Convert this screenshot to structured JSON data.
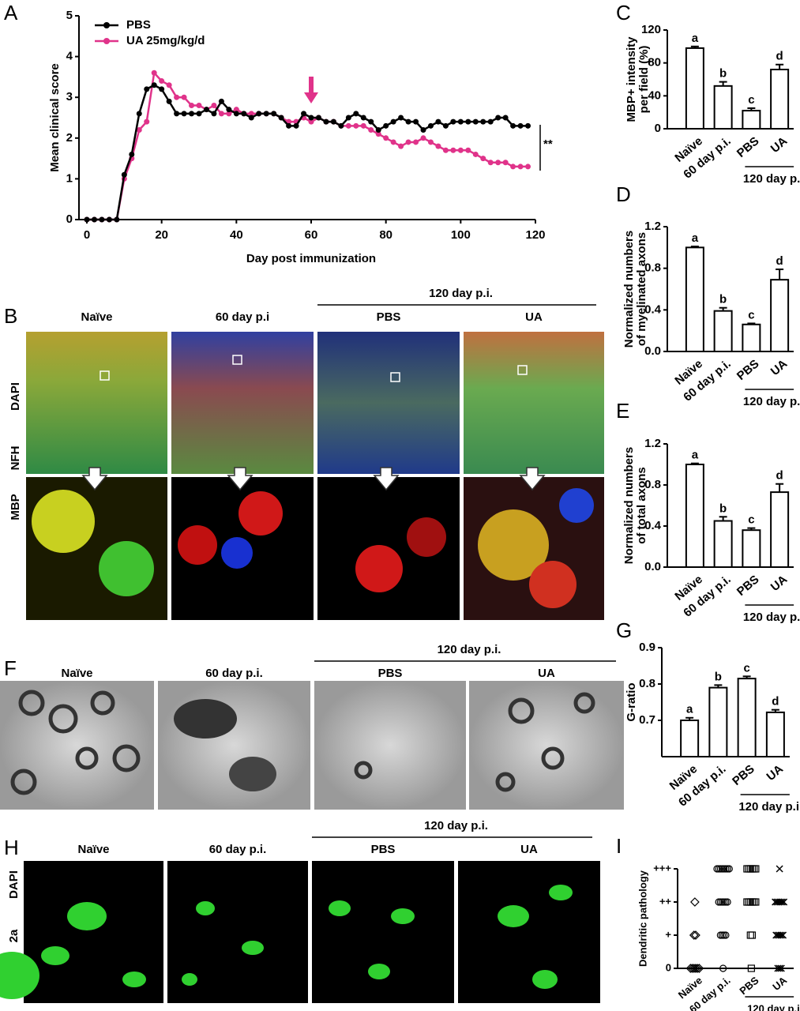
{
  "chart_data": [
    {
      "type": "line",
      "panel": "A",
      "xlabel": "Day post immunization",
      "ylabel": "Mean clinical score",
      "x": [
        0,
        2,
        4,
        6,
        8,
        10,
        12,
        14,
        16,
        18,
        20,
        22,
        24,
        26,
        28,
        30,
        32,
        34,
        36,
        38,
        40,
        42,
        44,
        46,
        48,
        50,
        52,
        54,
        56,
        58,
        60,
        62,
        64,
        66,
        68,
        70,
        72,
        74,
        76,
        78,
        80,
        82,
        84,
        86,
        88,
        90,
        92,
        94,
        96,
        98,
        100,
        102,
        104,
        106,
        108,
        110,
        112,
        114,
        116,
        118
      ],
      "series": [
        {
          "name": "PBS",
          "color": "#000000",
          "values": [
            0,
            0,
            0,
            0,
            0,
            1.1,
            1.6,
            2.6,
            3.2,
            3.3,
            3.2,
            2.9,
            2.6,
            2.6,
            2.6,
            2.6,
            2.7,
            2.6,
            2.9,
            2.7,
            2.6,
            2.6,
            2.5,
            2.6,
            2.6,
            2.6,
            2.5,
            2.3,
            2.3,
            2.6,
            2.5,
            2.5,
            2.4,
            2.4,
            2.3,
            2.5,
            2.6,
            2.5,
            2.4,
            2.2,
            2.3,
            2.4,
            2.5,
            2.4,
            2.4,
            2.2,
            2.3,
            2.4,
            2.3,
            2.4,
            2.4,
            2.4,
            2.4,
            2.4,
            2.4,
            2.5,
            2.5,
            2.3,
            2.3,
            2.3
          ]
        },
        {
          "name": "UA 25mg/kg/d",
          "color": "#e0338a",
          "values": [
            0,
            0,
            0,
            0,
            0,
            1.0,
            1.5,
            2.2,
            2.4,
            3.6,
            3.4,
            3.3,
            3.0,
            3.0,
            2.8,
            2.8,
            2.7,
            2.8,
            2.6,
            2.6,
            2.7,
            2.6,
            2.6,
            2.6,
            2.6,
            2.6,
            2.5,
            2.4,
            2.4,
            2.5,
            2.4,
            2.5,
            2.4,
            2.4,
            2.3,
            2.3,
            2.3,
            2.3,
            2.2,
            2.1,
            2.0,
            1.9,
            1.8,
            1.9,
            1.9,
            2.0,
            1.9,
            1.8,
            1.7,
            1.7,
            1.7,
            1.7,
            1.6,
            1.5,
            1.4,
            1.4,
            1.4,
            1.3,
            1.3,
            1.3
          ]
        }
      ],
      "xlim": [
        0,
        120
      ],
      "xticks": [
        0,
        20,
        40,
        60,
        80,
        100,
        120
      ],
      "ylim": [
        0,
        5
      ],
      "yticks": [
        0,
        1,
        2,
        3,
        4,
        5
      ],
      "legend": "upper left",
      "annotation": "**"
    },
    {
      "type": "bar",
      "panel": "C",
      "ylabel": [
        "MBP+ intensity",
        "per field (%)"
      ],
      "categories": [
        "Naïve",
        "60 day p.i.",
        "PBS",
        "UA"
      ],
      "group_label": "120 day p.i.",
      "values": [
        98,
        52,
        22,
        72
      ],
      "errors": [
        2,
        5,
        3,
        6
      ],
      "letters": [
        "a",
        "b",
        "c",
        "d"
      ],
      "ylim": [
        0,
        120
      ],
      "yticks": [
        0,
        40,
        80,
        120
      ],
      "color": "#ffffff"
    },
    {
      "type": "bar",
      "panel": "D",
      "ylabel": [
        "Normalized numbers",
        "of myelinated axons"
      ],
      "categories": [
        "Naïve",
        "60 day p.i.",
        "PBS",
        "UA"
      ],
      "group_label": "120 day p.i.",
      "values": [
        1.0,
        0.39,
        0.26,
        0.69
      ],
      "errors": [
        0.01,
        0.03,
        0.01,
        0.1
      ],
      "letters": [
        "a",
        "b",
        "c",
        "d"
      ],
      "ylim": [
        0,
        1.2
      ],
      "yticks": [
        {
          "value": 0,
          "label": "0.0"
        },
        0.4,
        0.8,
        1.2
      ],
      "color": "#ffffff"
    },
    {
      "type": "bar",
      "panel": "E",
      "ylabel": [
        "Normalized numbers",
        "of total axons"
      ],
      "categories": [
        "Naïve",
        "60 day p.i.",
        "PBS",
        "UA"
      ],
      "group_label": "120 day p.i.",
      "values": [
        1.0,
        0.45,
        0.36,
        0.73
      ],
      "errors": [
        0.01,
        0.04,
        0.02,
        0.08
      ],
      "letters": [
        "a",
        "b",
        "c",
        "d"
      ],
      "ylim": [
        0,
        1.2
      ],
      "yticks": [
        {
          "value": 0,
          "label": "0.0"
        },
        0.4,
        0.8,
        1.2
      ],
      "color": "#ffffff"
    },
    {
      "type": "bar",
      "panel": "G",
      "ylabel": [
        "G-ratio"
      ],
      "categories": [
        "Naïve",
        "60 day p.i.",
        "PBS",
        "UA"
      ],
      "group_label": "120 day p.i.",
      "values": [
        0.7,
        0.79,
        0.815,
        0.722
      ],
      "errors": [
        0.007,
        0.007,
        0.006,
        0.007
      ],
      "letters": [
        "a",
        "b",
        "c",
        "d"
      ],
      "ylim": [
        0.6,
        0.9
      ],
      "yticks": [
        0.7,
        0.8,
        0.9
      ],
      "color": "#ffffff"
    },
    {
      "type": "dots",
      "panel": "I",
      "ylabel": [
        "Dendritic pathology"
      ],
      "categories": [
        "Naïve",
        "60 day p.i.",
        "PBS",
        "UA"
      ],
      "group_label": "120 day p.i.",
      "values": [
        [
          0,
          0,
          0,
          0,
          0,
          0,
          1,
          1,
          2
        ],
        [
          0,
          1,
          1,
          1,
          1,
          2,
          2,
          2,
          2,
          2,
          2,
          3,
          3,
          3,
          3,
          3,
          3,
          3,
          3
        ],
        [
          0,
          1,
          1,
          2,
          2,
          2,
          2,
          2,
          2,
          3,
          3,
          3,
          3,
          3,
          3
        ],
        [
          0,
          0,
          0,
          1,
          1,
          1,
          1,
          1,
          2,
          2,
          2,
          2,
          2,
          2,
          3
        ]
      ],
      "ylim": [
        0,
        3
      ],
      "yticks": [
        0,
        {
          "value": 1,
          "label": "+"
        },
        {
          "value": 2,
          "label": "++"
        },
        {
          "value": 3,
          "label": "+++"
        }
      ]
    }
  ],
  "image_panels": {
    "B": {
      "letter": "B",
      "columns": [
        "Naïve",
        "60 day p.i",
        "PBS",
        "UA"
      ],
      "group": "120 day p.i.",
      "stains": [
        "MBP",
        "NFH",
        "DAPI"
      ]
    },
    "F": {
      "letter": "F",
      "columns": [
        "Naïve",
        "60 day p.i.",
        "PBS",
        "UA"
      ],
      "group": "120 day p.i."
    },
    "H": {
      "letter": "H",
      "columns": [
        "Naïve",
        "60 day p.i.",
        "PBS",
        "UA"
      ],
      "group": "120 day p.i.",
      "stains": [
        "2a",
        "DAPI"
      ]
    }
  }
}
